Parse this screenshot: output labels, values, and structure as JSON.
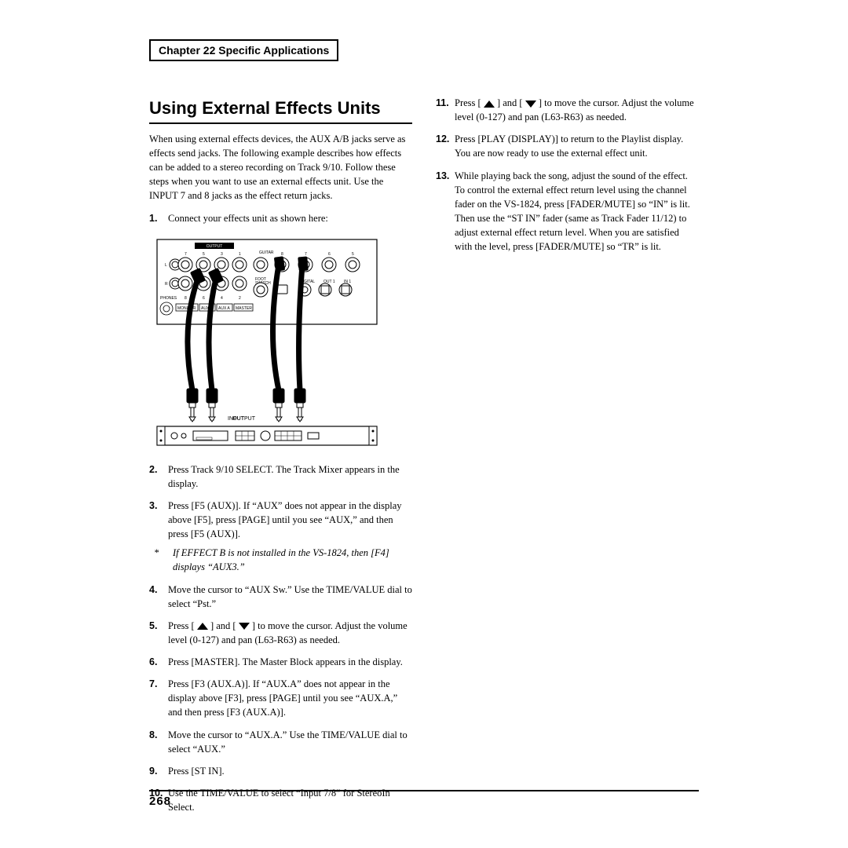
{
  "chapter_label": "Chapter 22 Specific Applications",
  "section_title": "Using External Effects Units",
  "intro": "When using external effects devices, the AUX A/B jacks serve as effects send jacks. The following example describes how effects can be added to a stereo recording on Track 9/10. Follow these steps when you want to use an external effects unit. Use the INPUT 7 and 8 jacks as the effect return jacks.",
  "left_steps": [
    {
      "n": "1.",
      "text": "Connect your effects unit as shown here:"
    },
    {
      "n": "2.",
      "text": "Press Track 9/10 SELECT. The Track Mixer appears in the display."
    },
    {
      "n": "3.",
      "text": "Press [F5 (AUX)]. If “AUX” does not appear in the display above [F5], press [PAGE] until you see “AUX,” and then press [F5 (AUX)]."
    },
    {
      "n": "4.",
      "text": "Move the cursor to “AUX Sw.” Use the TIME/VALUE dial to select “Pst.”"
    },
    {
      "n": "5.",
      "pre": "Press [ ",
      "mid": " ] and [ ",
      "post": " ] to move the cursor. Adjust the volume level (0-127) and pan (L63-R63) as needed.",
      "arrows": true
    },
    {
      "n": "6.",
      "text": "Press [MASTER]. The Master Block appears in the display."
    },
    {
      "n": "7.",
      "text": "Press [F3 (AUX.A)]. If “AUX.A” does not appear in the display above [F3], press [PAGE] until you see “AUX.A,” and then press [F3 (AUX.A)]."
    },
    {
      "n": "8.",
      "text": "Move the cursor to “AUX.A.” Use the TIME/VALUE dial to select “AUX.”"
    },
    {
      "n": "9.",
      "text": "Press [ST IN]."
    },
    {
      "n": "10.",
      "text": "Use the TIME/VALUE to select “Input 7/8” for StereoIn Select."
    }
  ],
  "note_text": "If EFFECT B is not installed in the VS-1824, then [F4] displays “AUX3.”",
  "right_steps": [
    {
      "n": "11.",
      "pre": "Press [ ",
      "mid": " ] and [ ",
      "post": " ] to move the cursor. Adjust the volume level (0-127) and pan (L63-R63) as needed.",
      "arrows": true
    },
    {
      "n": "12.",
      "text": "Press [PLAY (DISPLAY)] to return to the Playlist display. You are now ready to use the external effect unit."
    },
    {
      "n": "13.",
      "text": "While playing back the song, adjust the sound of the effect. To control the external effect return level using the channel fader on the VS-1824, press [FADER/MUTE] so “IN” is lit. Then use the “ST IN” fader (same as Track Fader 11/12) to adjust external effect return level. When you are satisfied with the level, press [FADER/MUTE] so “TR” is lit."
    }
  ],
  "figure_labels": {
    "output": "OUTPUT",
    "guitar": "GUITAR\n(Hi-Z)",
    "phones": "PHONES",
    "monitor": "MONITOR",
    "foot_switch": "FOOT\nSWITCH",
    "digital": "DIGITAL",
    "out1": "OUT 1",
    "in1": "IN 1",
    "auxb": "AUX B",
    "auxa": "AUX A",
    "master": "MASTER",
    "input": "INPUT",
    "output_lower": "OUTPUT",
    "row1": [
      "7",
      "5",
      "3",
      "1"
    ],
    "row1b": [
      "8",
      "7",
      "6",
      "5"
    ],
    "row2": [
      "8",
      "6",
      "4",
      "2"
    ],
    "L": "L",
    "R": "R"
  },
  "page_number": "268"
}
